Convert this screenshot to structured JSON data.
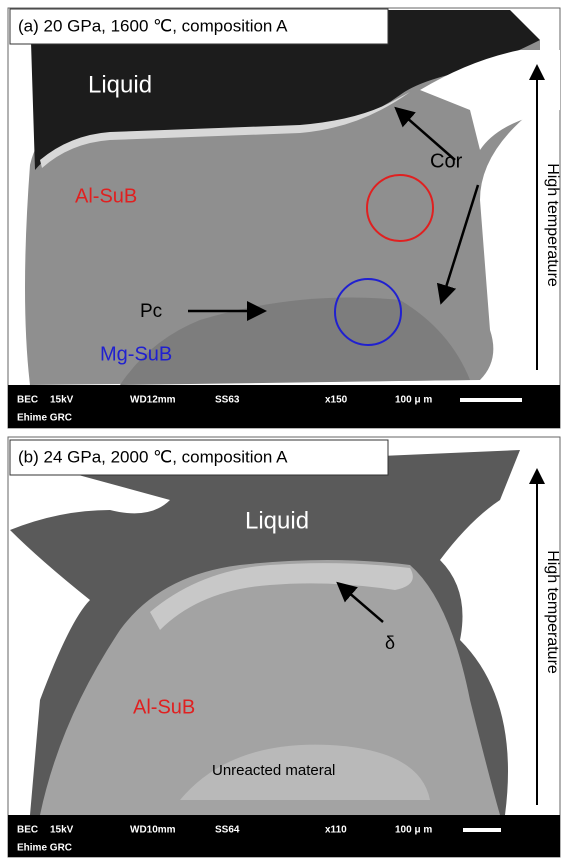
{
  "panels": [
    {
      "title": "(a) 20 GPa, 1600 ℃, composition A",
      "labels": {
        "liquid": "Liquid",
        "cor": "Cor",
        "al_sub": "Al-SuB",
        "pc": "Pc",
        "mg_sub": "Mg-SuB"
      },
      "side_label": "High temperature",
      "info_bar": [
        "BEC",
        "15kV",
        "WD12mm",
        "SS63",
        "x150",
        "100 μ m"
      ],
      "info_bar_2": "Ehime GRC"
    },
    {
      "title": "(b) 24 GPa, 2000 ℃, composition A",
      "labels": {
        "liquid": "Liquid",
        "delta": "δ",
        "al_sub": "Al-SuB",
        "unreacted": "Unreacted materal"
      },
      "side_label": "High temperature",
      "info_bar": [
        "BEC",
        "15kV",
        "WD10mm",
        "SS64",
        "x110",
        "100 μ m"
      ],
      "info_bar_2": "Ehime GRC"
    }
  ]
}
